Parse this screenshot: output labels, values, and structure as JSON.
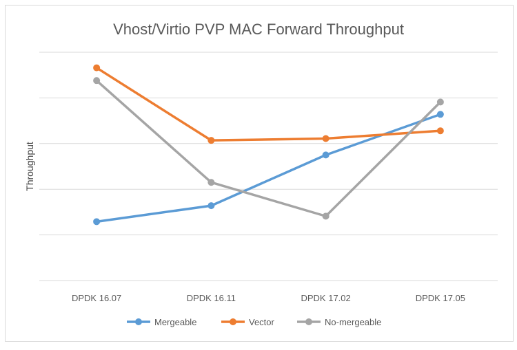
{
  "chart_data": {
    "type": "line",
    "title": "Vhost/Virtio PVP MAC Forward Throughput",
    "xlabel": "",
    "ylabel": "Throughput",
    "categories": [
      "DPDK 16.07",
      "DPDK 16.11",
      "DPDK 17.02",
      "DPDK 17.05"
    ],
    "ylim": [
      0,
      5
    ],
    "grid": true,
    "legend": "bottom",
    "series": [
      {
        "name": "Mergeable",
        "color": "#5b9bd5",
        "values": [
          1.29,
          1.64,
          2.75,
          3.64
        ]
      },
      {
        "name": "Vector",
        "color": "#ed7d31",
        "values": [
          4.66,
          3.07,
          3.11,
          3.28
        ]
      },
      {
        "name": "No-mergeable",
        "color": "#a5a5a5",
        "values": [
          4.38,
          2.15,
          1.41,
          3.91
        ]
      }
    ]
  }
}
